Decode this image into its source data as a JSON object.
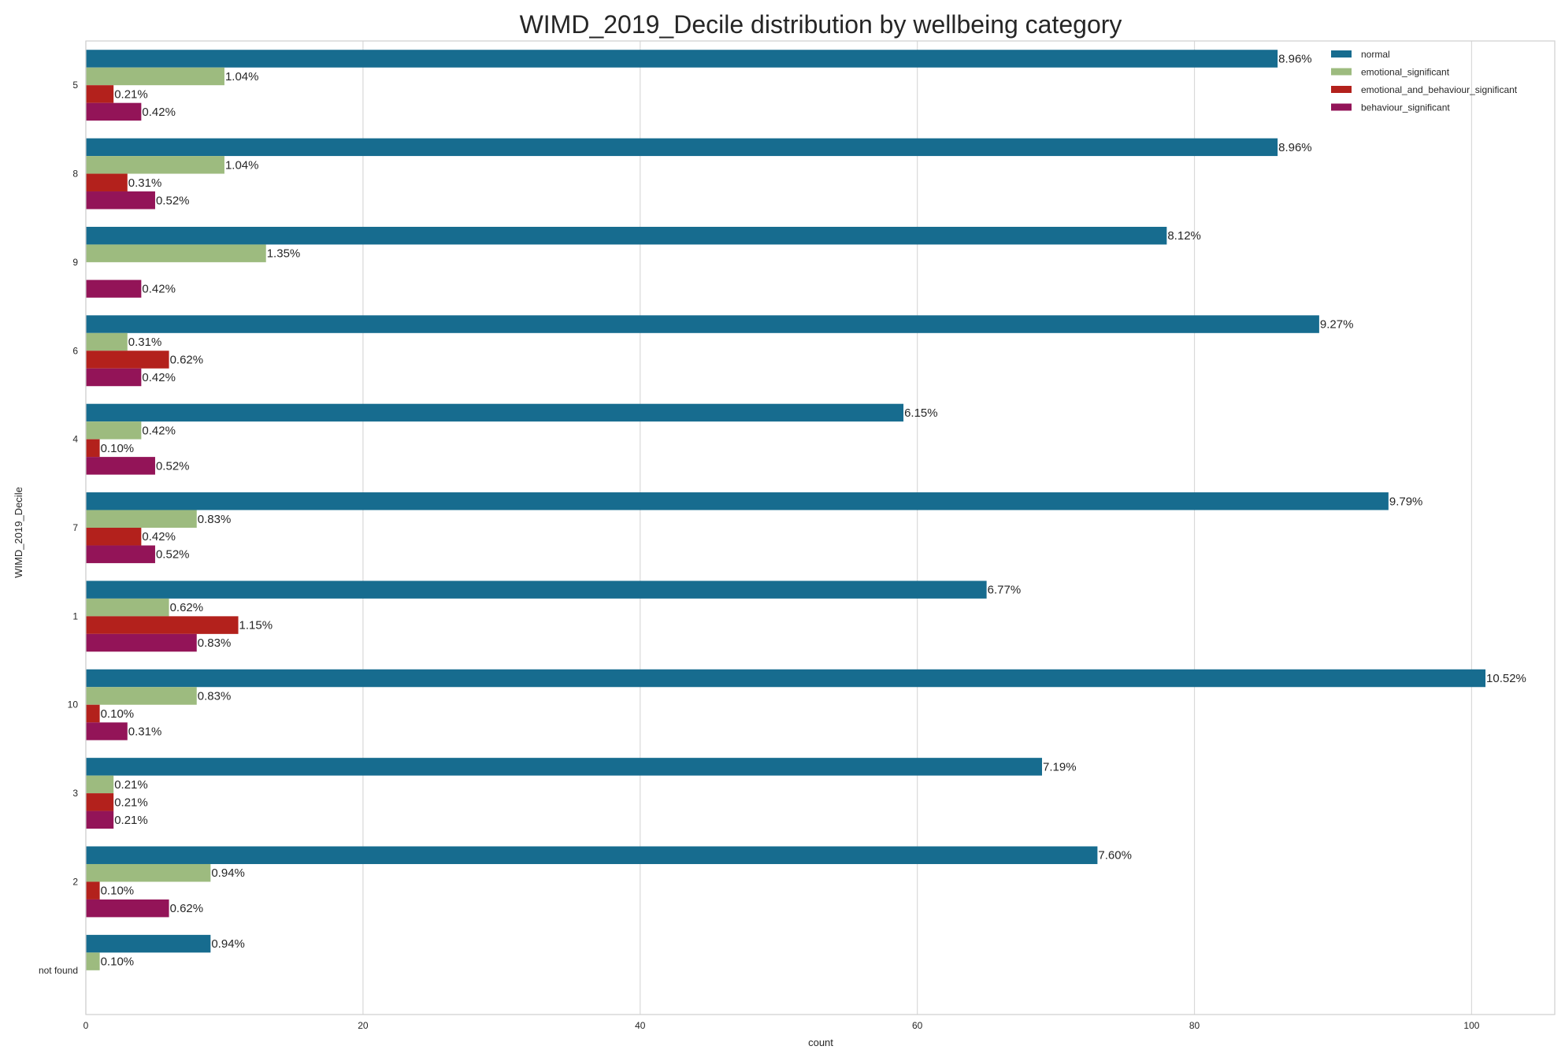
{
  "chart_data": {
    "type": "bar",
    "orientation": "horizontal",
    "title": "WIMD_2019_Decile distribution by wellbeing category",
    "xlabel": "count",
    "ylabel": "WIMD_2019_Decile",
    "xlim": [
      0,
      106
    ],
    "xticks": [
      0,
      20,
      40,
      60,
      80,
      100
    ],
    "grid": "vertical",
    "legend_position": "top-right",
    "categories": [
      "5",
      "8",
      "9",
      "6",
      "4",
      "7",
      "1",
      "10",
      "3",
      "2",
      "not found"
    ],
    "series": [
      {
        "name": "normal",
        "color": "#176c8f",
        "values": [
          86,
          86,
          78,
          89,
          59,
          94,
          65,
          101,
          69,
          73,
          9
        ],
        "labels": [
          "8.96%",
          "8.96%",
          "8.12%",
          "9.27%",
          "6.15%",
          "9.79%",
          "6.77%",
          "10.52%",
          "7.19%",
          "7.60%",
          "0.94%"
        ]
      },
      {
        "name": "emotional_significant",
        "color": "#9dbb7f",
        "values": [
          10,
          10,
          13,
          3,
          4,
          8,
          6,
          8,
          2,
          9,
          1
        ],
        "labels": [
          "1.04%",
          "1.04%",
          "1.35%",
          "0.31%",
          "0.42%",
          "0.83%",
          "0.62%",
          "0.83%",
          "0.21%",
          "0.94%",
          "0.10%"
        ]
      },
      {
        "name": "emotional_and_behaviour_significant",
        "color": "#b3211c",
        "values": [
          2,
          3,
          null,
          6,
          1,
          4,
          11,
          1,
          2,
          1,
          null
        ],
        "labels": [
          "0.21%",
          "0.31%",
          null,
          "0.62%",
          "0.10%",
          "0.42%",
          "1.15%",
          "0.10%",
          "0.21%",
          "0.10%",
          null
        ]
      },
      {
        "name": "behaviour_significant",
        "color": "#931458",
        "values": [
          4,
          5,
          4,
          4,
          5,
          5,
          8,
          3,
          2,
          6,
          null
        ],
        "labels": [
          "0.42%",
          "0.52%",
          "0.42%",
          "0.42%",
          "0.52%",
          "0.52%",
          "0.83%",
          "0.31%",
          "0.21%",
          "0.62%",
          null
        ]
      }
    ]
  }
}
